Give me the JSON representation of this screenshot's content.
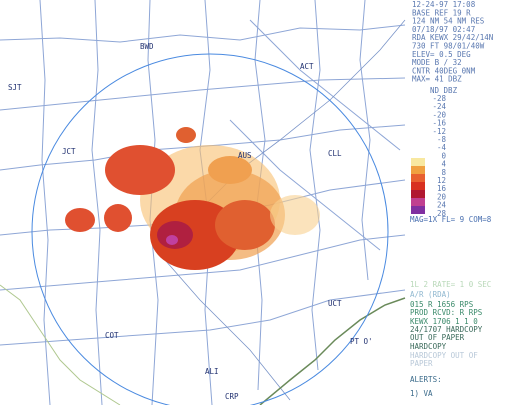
{
  "header": {
    "lines": [
      "12-24-97 17:08",
      "BASE REF      19 R",
      "124 NM  54 NM RES",
      "07/18/97 02:47",
      "RDA KEWX 29/42/14N",
      "  730 FT  98/01/40W",
      "ELEV= 0.5 DEG",
      "MODE B  /  32",
      "CNTR  40DEG   0NM",
      "MAX= 41 DBZ"
    ]
  },
  "legend": {
    "title": "ND  DBZ",
    "levels": [
      "-28",
      "-24",
      "-20",
      "-16",
      "-12",
      "-8",
      "-4",
      "0",
      "4",
      "8",
      "12",
      "16",
      "20",
      "24",
      "28"
    ]
  },
  "status": "MAG=1X FL= 9 COM=8",
  "messages": [
    "1L 2 RATE= 1 0 SEC",
    "A/R (RDA)",
    "015 R   1656    RPS",
    "PROD RCVD: R   RPS",
    "KEWX 1706 1 1 0",
    "24/1707 HARDCOPY",
    "OUT OF PAPER",
    "HARDCOPY",
    "HARDCOPY OUT OF",
    "PAPER",
    "ALERTS:",
    "1) VA"
  ],
  "map": {
    "labels": [
      "SJT",
      "BWD",
      "ACT",
      "JCT",
      "AUS",
      "CLL",
      "UCT",
      "PT O'",
      "COT",
      "ALI",
      "CRP"
    ]
  }
}
